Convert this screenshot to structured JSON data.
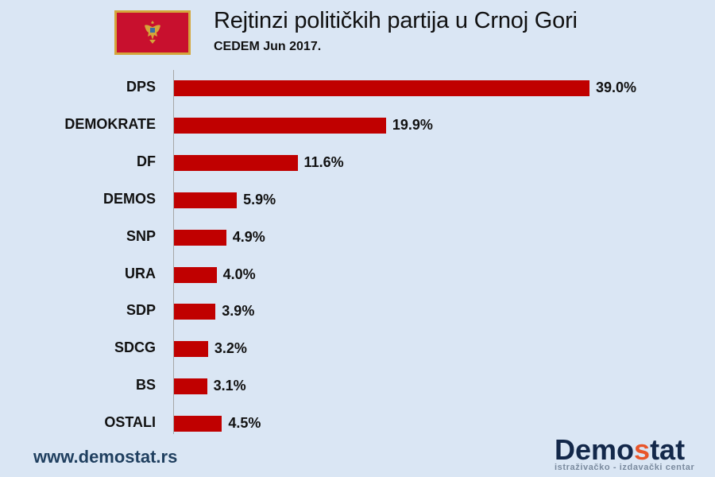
{
  "header": {
    "title": "Rejtinzi političkih partija u Crnoj Gori",
    "subtitle": "CEDEM Jun 2017.",
    "flag_icon": "montenegro-flag-icon"
  },
  "footer": {
    "url": "www.demostat.rs",
    "logo_prefix": "Demo",
    "logo_accent": "s",
    "logo_suffix": "tat",
    "logo_tagline": "istraživačko - izdavački  centar"
  },
  "colors": {
    "bar": "#c00000",
    "background": "#dae6f4",
    "logo_dark": "#13284a",
    "logo_accent": "#e8552a"
  },
  "chart_data": {
    "type": "bar",
    "orientation": "horizontal",
    "title": "Rejtinzi političkih partija u Crnoj Gori",
    "subtitle": "CEDEM Jun 2017.",
    "xlabel": "",
    "ylabel": "",
    "categories": [
      "DPS",
      "DEMOKRATE",
      "DF",
      "DEMOS",
      "SNP",
      "URA",
      "SDP",
      "SDCG",
      "BS",
      "OSTALI"
    ],
    "values": [
      39.0,
      19.9,
      11.6,
      5.9,
      4.9,
      4.0,
      3.9,
      3.2,
      3.1,
      4.5
    ],
    "value_labels": [
      "39.0%",
      "19.9%",
      "11.6%",
      "5.9%",
      "4.9%",
      "4.0%",
      "3.9%",
      "3.2%",
      "3.1%",
      "4.5%"
    ],
    "unit": "%",
    "grid": false,
    "legend": null
  }
}
